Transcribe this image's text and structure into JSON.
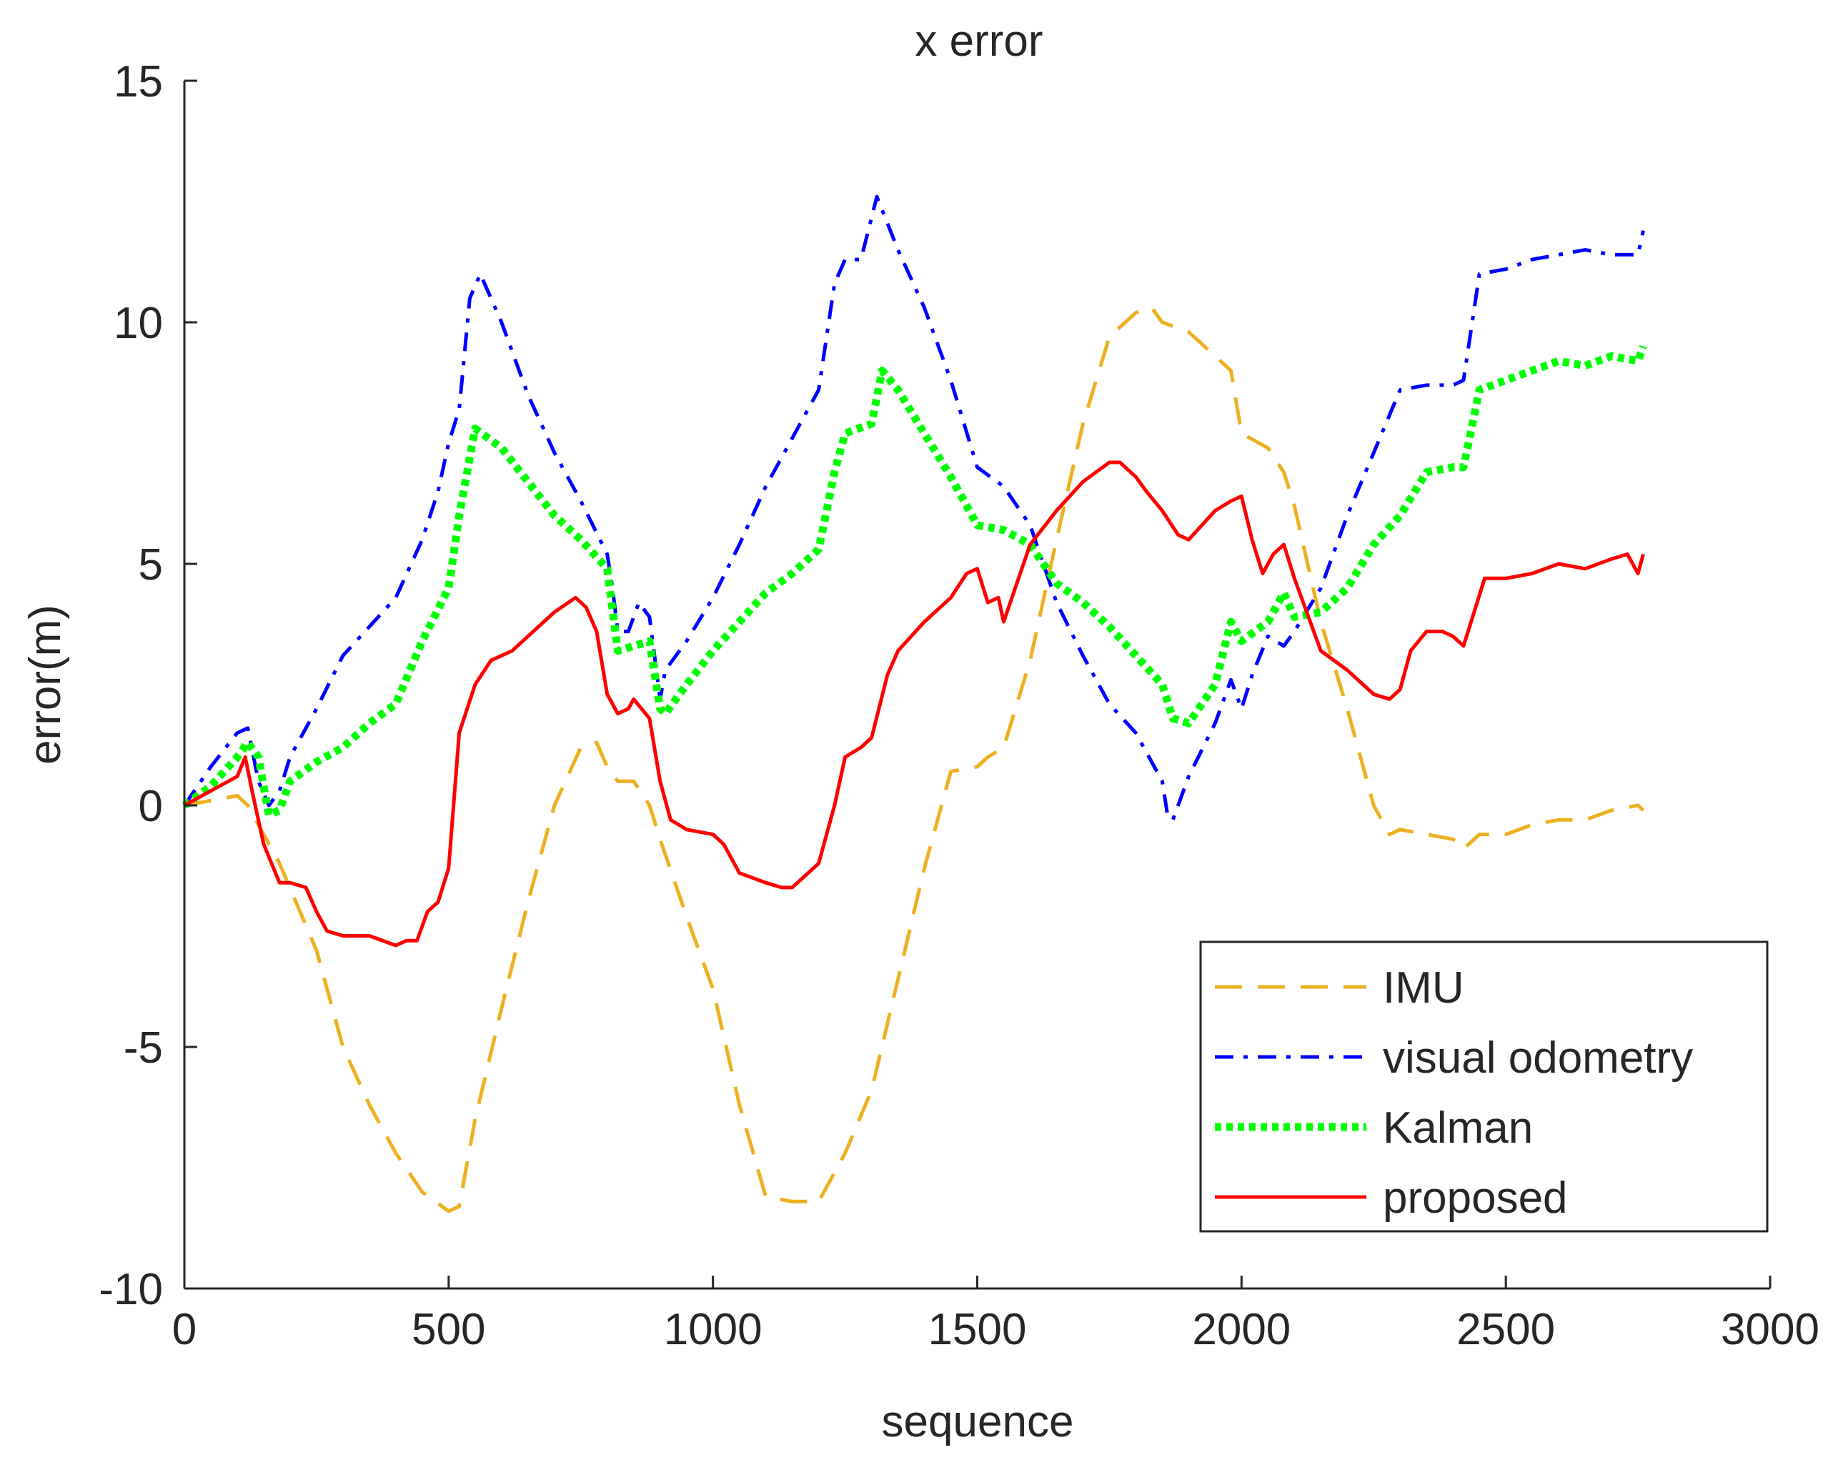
{
  "chart_data": {
    "type": "line",
    "title": "x error",
    "xlabel": "sequence",
    "ylabel": "error(m)",
    "xlim": [
      0,
      3000
    ],
    "ylim": [
      -10,
      15
    ],
    "xticks": [
      0,
      500,
      1000,
      1500,
      2000,
      2500,
      3000
    ],
    "yticks": [
      -10,
      -5,
      0,
      5,
      10,
      15
    ],
    "xtick_labels": [
      "0",
      "500",
      "1000",
      "1500",
      "2000",
      "2500",
      "3000"
    ],
    "ytick_labels": [
      "-10",
      "-5",
      "0",
      "5",
      "10",
      "15"
    ],
    "grid": false,
    "legend_position": "bottom-right",
    "series": [
      {
        "name": "IMU",
        "color": "#edb120",
        "style": "dashed",
        "x": [
          0,
          100,
          120,
          180,
          250,
          300,
          350,
          400,
          450,
          500,
          520,
          550,
          600,
          650,
          700,
          750,
          780,
          800,
          820,
          850,
          880,
          900,
          950,
          1000,
          1050,
          1100,
          1150,
          1200,
          1230,
          1250,
          1300,
          1350,
          1400,
          1450,
          1500,
          1520,
          1550,
          1600,
          1650,
          1700,
          1750,
          1800,
          1830,
          1850,
          1900,
          1950,
          1980,
          2000,
          2050,
          2080,
          2100,
          2150,
          2200,
          2250,
          2280,
          2300,
          2350,
          2400,
          2420,
          2450,
          2500,
          2550,
          2600,
          2650,
          2700,
          2750,
          2760
        ],
        "y": [
          0,
          0.2,
          0,
          -1.2,
          -3,
          -5,
          -6.2,
          -7.2,
          -8,
          -8.4,
          -8.3,
          -6.5,
          -4.2,
          -2,
          0,
          1.2,
          1.3,
          0.8,
          0.5,
          0.5,
          0,
          -0.7,
          -2.3,
          -3.8,
          -6.2,
          -8.1,
          -8.2,
          -8.2,
          -7.6,
          -7.2,
          -5.9,
          -3.6,
          -1.3,
          0.7,
          0.8,
          1,
          1.2,
          3,
          5.5,
          7.9,
          9.7,
          10.2,
          10.3,
          10,
          9.8,
          9.3,
          9,
          7.7,
          7.4,
          6.9,
          6.2,
          3.8,
          2,
          0,
          -0.6,
          -0.5,
          -0.6,
          -0.7,
          -0.9,
          -0.6,
          -0.6,
          -0.4,
          -0.3,
          -0.3,
          -0.1,
          0,
          -0.1
        ]
      },
      {
        "name": "visual odometry",
        "color": "#0000ff",
        "style": "dashdot",
        "x": [
          0,
          50,
          100,
          120,
          140,
          160,
          180,
          200,
          250,
          300,
          350,
          400,
          450,
          480,
          500,
          520,
          540,
          560,
          600,
          650,
          700,
          750,
          800,
          810,
          820,
          840,
          860,
          880,
          900,
          910,
          950,
          1000,
          1050,
          1100,
          1150,
          1200,
          1230,
          1250,
          1280,
          1310,
          1350,
          1400,
          1450,
          1500,
          1550,
          1600,
          1650,
          1700,
          1750,
          1800,
          1850,
          1860,
          1870,
          1900,
          1950,
          1980,
          2000,
          2020,
          2050,
          2080,
          2100,
          2150,
          2200,
          2250,
          2300,
          2350,
          2400,
          2420,
          2450,
          2500,
          2550,
          2600,
          2650,
          2700,
          2750,
          2760
        ],
        "y": [
          0,
          0.8,
          1.5,
          1.6,
          0.5,
          0,
          0.3,
          1,
          2,
          3.1,
          3.7,
          4.3,
          5.5,
          6.5,
          7.5,
          8.2,
          10.5,
          11,
          10,
          8.5,
          7.3,
          6.3,
          5.2,
          4.5,
          3.6,
          3.6,
          4.2,
          3.9,
          2.2,
          2.8,
          3.4,
          4.3,
          5.4,
          6.6,
          7.6,
          8.6,
          10.8,
          11.3,
          11.3,
          12.6,
          11.5,
          10.3,
          8.8,
          7,
          6.6,
          5.8,
          4.2,
          3.1,
          2.1,
          1.5,
          0.5,
          -0.2,
          -0.3,
          0.6,
          1.7,
          2.6,
          2,
          2.7,
          3.5,
          3.3,
          3.6,
          4.5,
          6,
          7.3,
          8.6,
          8.7,
          8.7,
          8.8,
          11,
          11.1,
          11.3,
          11.4,
          11.5,
          11.4,
          11.4,
          11.9
        ]
      },
      {
        "name": "Kalman",
        "color": "#00ff00",
        "style": "dotted",
        "x": [
          0,
          50,
          100,
          120,
          140,
          160,
          180,
          200,
          250,
          300,
          350,
          400,
          450,
          500,
          520,
          550,
          600,
          650,
          700,
          750,
          800,
          820,
          850,
          880,
          900,
          910,
          950,
          1000,
          1050,
          1100,
          1150,
          1200,
          1230,
          1250,
          1300,
          1320,
          1350,
          1400,
          1450,
          1500,
          1550,
          1600,
          1650,
          1700,
          1750,
          1800,
          1850,
          1870,
          1900,
          1950,
          1980,
          2000,
          2050,
          2080,
          2100,
          2150,
          2200,
          2250,
          2300,
          2350,
          2400,
          2420,
          2450,
          2500,
          2550,
          2600,
          2650,
          2700,
          2750,
          2760
        ],
        "y": [
          0,
          0.4,
          1,
          1.3,
          1,
          -0.2,
          -0.1,
          0.5,
          0.9,
          1.2,
          1.7,
          2.1,
          3.4,
          4.5,
          6,
          7.8,
          7.4,
          6.7,
          6,
          5.5,
          4.9,
          3.2,
          3.3,
          3.4,
          2,
          1.9,
          2.5,
          3.2,
          3.8,
          4.4,
          4.8,
          5.3,
          6.9,
          7.7,
          7.9,
          9,
          8.6,
          7.7,
          6.8,
          5.8,
          5.7,
          5.4,
          4.6,
          4.2,
          3.7,
          3.1,
          2.5,
          1.8,
          1.7,
          2.5,
          3.8,
          3.4,
          3.8,
          4.4,
          3.9,
          4,
          4.5,
          5.4,
          6,
          6.9,
          7,
          7,
          8.6,
          8.8,
          9,
          9.2,
          9.1,
          9.3,
          9.2,
          9.5
        ]
      },
      {
        "name": "proposed",
        "color": "#ff0000",
        "style": "solid",
        "x": [
          0,
          50,
          100,
          115,
          130,
          150,
          180,
          200,
          230,
          250,
          270,
          300,
          350,
          400,
          420,
          440,
          460,
          480,
          500,
          520,
          550,
          580,
          620,
          660,
          700,
          740,
          760,
          780,
          800,
          820,
          840,
          850,
          880,
          900,
          920,
          950,
          1000,
          1020,
          1050,
          1100,
          1130,
          1150,
          1170,
          1200,
          1230,
          1250,
          1280,
          1300,
          1330,
          1350,
          1400,
          1450,
          1480,
          1500,
          1520,
          1540,
          1550,
          1600,
          1650,
          1700,
          1750,
          1770,
          1800,
          1820,
          1850,
          1880,
          1900,
          1950,
          1980,
          2000,
          2020,
          2040,
          2060,
          2080,
          2100,
          2150,
          2200,
          2250,
          2280,
          2300,
          2320,
          2350,
          2380,
          2400,
          2420,
          2440,
          2460,
          2500,
          2550,
          2600,
          2650,
          2700,
          2730,
          2750,
          2760
        ],
        "y": [
          0,
          0.3,
          0.6,
          1,
          0.2,
          -0.8,
          -1.6,
          -1.6,
          -1.7,
          -2.2,
          -2.6,
          -2.7,
          -2.7,
          -2.9,
          -2.8,
          -2.8,
          -2.2,
          -2,
          -1.3,
          1.5,
          2.5,
          3,
          3.2,
          3.6,
          4,
          4.3,
          4.1,
          3.6,
          2.3,
          1.9,
          2,
          2.2,
          1.8,
          0.5,
          -0.3,
          -0.5,
          -0.6,
          -0.8,
          -1.4,
          -1.6,
          -1.7,
          -1.7,
          -1.5,
          -1.2,
          0,
          1,
          1.2,
          1.4,
          2.7,
          3.2,
          3.8,
          4.3,
          4.8,
          4.9,
          4.2,
          4.3,
          3.8,
          5.4,
          6.1,
          6.7,
          7.1,
          7.1,
          6.8,
          6.5,
          6.1,
          5.6,
          5.5,
          6.1,
          6.3,
          6.4,
          5.5,
          4.8,
          5.2,
          5.4,
          4.7,
          3.2,
          2.8,
          2.3,
          2.2,
          2.4,
          3.2,
          3.6,
          3.6,
          3.5,
          3.3,
          4,
          4.7,
          4.7,
          4.8,
          5,
          4.9,
          5.1,
          5.2,
          4.8,
          5.2
        ]
      }
    ]
  }
}
